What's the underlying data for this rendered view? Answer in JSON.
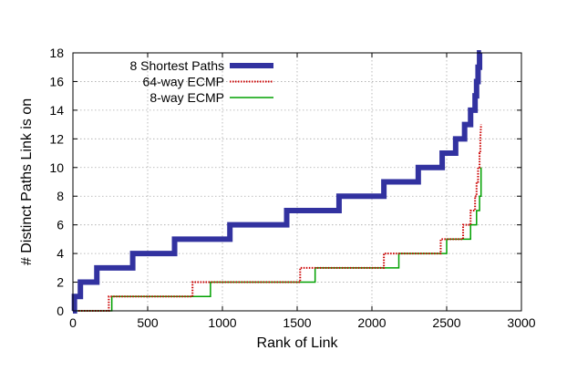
{
  "chart_data": {
    "type": "line",
    "title": "",
    "xlabel": "Rank of Link",
    "ylabel": "# Distinct Paths Link is on",
    "xlim": [
      0,
      3000
    ],
    "ylim": [
      0,
      18
    ],
    "x_ticks": [
      "0",
      "500",
      "1000",
      "1500",
      "2000",
      "2500",
      "3000"
    ],
    "y_ticks": [
      "0",
      "2",
      "4",
      "6",
      "8",
      "10",
      "12",
      "14",
      "16",
      "18"
    ],
    "grid": true,
    "legend_position": "top-left",
    "series": [
      {
        "name": "8 Shortest Paths",
        "color": "#3232a0",
        "style": "thick-solid",
        "x": [
          0,
          10,
          10,
          50,
          50,
          160,
          160,
          400,
          400,
          680,
          680,
          1050,
          1050,
          1430,
          1430,
          1780,
          1780,
          2080,
          2080,
          2310,
          2310,
          2470,
          2470,
          2560,
          2560,
          2620,
          2620,
          2660,
          2660,
          2690,
          2690,
          2700,
          2700,
          2710,
          2710,
          2720,
          2720,
          2725,
          2725,
          2730,
          2730
        ],
        "y": [
          0,
          0,
          1,
          1,
          2,
          2,
          3,
          3,
          4,
          4,
          5,
          5,
          6,
          6,
          7,
          7,
          8,
          8,
          9,
          9,
          10,
          10,
          11,
          11,
          12,
          12,
          13,
          13,
          14,
          14,
          15,
          15,
          16,
          16,
          17,
          17,
          18,
          18,
          18,
          18,
          18
        ]
      },
      {
        "name": "64-way ECMP",
        "color": "#cc0000",
        "style": "dotted",
        "x": [
          0,
          240,
          240,
          800,
          800,
          1520,
          1520,
          2080,
          2080,
          2460,
          2460,
          2610,
          2610,
          2660,
          2660,
          2690,
          2690,
          2700,
          2700,
          2710,
          2710,
          2720,
          2720,
          2725,
          2725,
          2730
        ],
        "y": [
          0,
          0,
          1,
          1,
          2,
          2,
          3,
          3,
          4,
          4,
          5,
          5,
          6,
          6,
          7,
          7,
          8,
          8,
          9,
          9,
          10,
          10,
          11,
          11,
          12,
          13
        ]
      },
      {
        "name": "8-way ECMP",
        "color": "#00a000",
        "style": "solid",
        "x": [
          0,
          260,
          260,
          920,
          920,
          1620,
          1620,
          2180,
          2180,
          2500,
          2500,
          2660,
          2660,
          2700,
          2700,
          2720,
          2720,
          2730,
          2730
        ],
        "y": [
          0,
          0,
          1,
          1,
          2,
          2,
          3,
          3,
          4,
          4,
          5,
          5,
          6,
          6,
          7,
          7,
          8,
          8,
          10
        ]
      }
    ]
  }
}
